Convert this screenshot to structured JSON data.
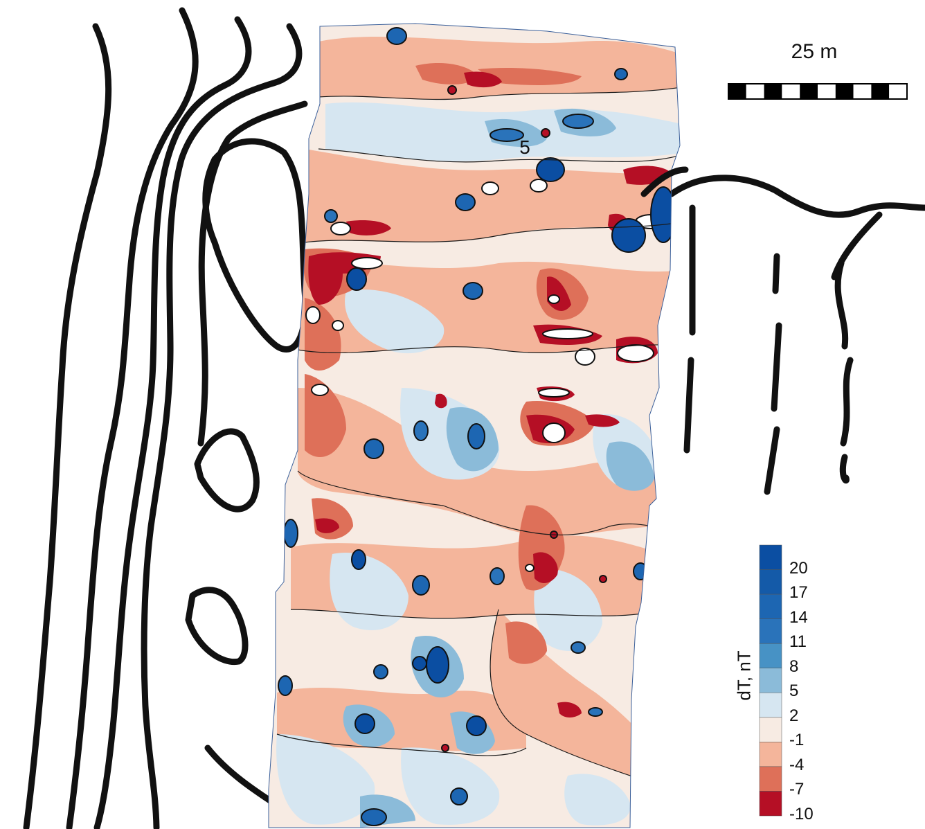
{
  "map": {
    "field_label": "5"
  },
  "scale_bar": {
    "label": "25 m",
    "segments": 10
  },
  "legend": {
    "title": "dT, nT",
    "ticks": [
      "20",
      "17",
      "14",
      "11",
      "8",
      "5",
      "2",
      "-1",
      "-4",
      "-7",
      "-10"
    ],
    "colors": [
      "#0b4ea2",
      "#145aa8",
      "#1d66b2",
      "#2a73ba",
      "#4792c5",
      "#8bbbd9",
      "#d6e6f1",
      "#f7ebe3",
      "#f4b59b",
      "#de7059",
      "#b50f25"
    ]
  }
}
